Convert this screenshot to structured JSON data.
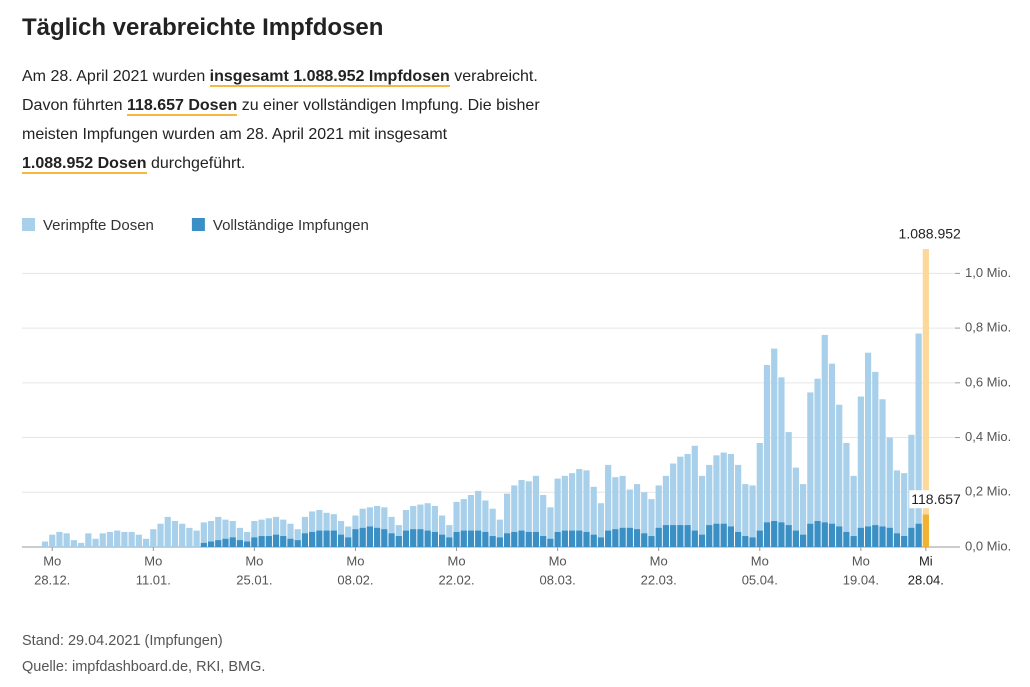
{
  "title": "Täglich verabreichte Impfdosen",
  "intro": [
    [
      {
        "text": "Am 28. April 2021 wurden "
      },
      {
        "text": "insgesamt 1.088.952 Impfdosen",
        "bold": true
      },
      {
        "text": " verabreicht."
      }
    ],
    [
      {
        "text": "Davon führten "
      },
      {
        "text": "118.657 Dosen",
        "bold": true
      },
      {
        "text": " zu einer vollständigen Impfung. Die bisher"
      }
    ],
    [
      {
        "text": "meisten Impfungen wurden am 28. April 2021 mit insgesamt"
      }
    ],
    [
      {
        "text": "1.088.952 Dosen",
        "bold": true
      },
      {
        "text": " durchgeführt."
      }
    ]
  ],
  "footer": [
    "Stand: 29.04.2021 (Impfungen)",
    "Quelle: impfdashboard.de, RKI, BMG."
  ],
  "chart_data": {
    "type": "bar",
    "overlay": true,
    "categories": [
      null,
      [
        "Mo",
        "28.12."
      ],
      null,
      null,
      null,
      null,
      null,
      null,
      null,
      null,
      null,
      null,
      null,
      null,
      null,
      [
        "Mo",
        "11.01."
      ],
      null,
      null,
      null,
      null,
      null,
      null,
      null,
      null,
      null,
      null,
      null,
      null,
      null,
      [
        "Mo",
        "25.01."
      ],
      null,
      null,
      null,
      null,
      null,
      null,
      null,
      null,
      null,
      null,
      null,
      null,
      null,
      [
        "Mo",
        "08.02."
      ],
      null,
      null,
      null,
      null,
      null,
      null,
      null,
      null,
      null,
      null,
      null,
      null,
      null,
      [
        "Mo",
        "22.02."
      ],
      null,
      null,
      null,
      null,
      null,
      null,
      null,
      null,
      null,
      null,
      null,
      null,
      null,
      [
        "Mo",
        "08.03."
      ],
      null,
      null,
      null,
      null,
      null,
      null,
      null,
      null,
      null,
      null,
      null,
      null,
      null,
      [
        "Mo",
        "22.03."
      ],
      null,
      null,
      null,
      null,
      null,
      null,
      null,
      null,
      null,
      null,
      null,
      null,
      null,
      [
        "Mo",
        "05.04."
      ],
      null,
      null,
      null,
      null,
      null,
      null,
      null,
      null,
      null,
      null,
      null,
      null,
      null,
      [
        "Mo",
        "19.04."
      ],
      null,
      null,
      null,
      null,
      null,
      null,
      null,
      null,
      [
        "Mi",
        "28.04."
      ]
    ],
    "series": [
      {
        "name": "Verimpfte Dosen",
        "color": "#a8d0ea",
        "highlight_color": "#fcd89a",
        "values": [
          20000,
          45000,
          55000,
          50000,
          25000,
          15000,
          50000,
          30000,
          50000,
          55000,
          60000,
          55000,
          55000,
          45000,
          30000,
          65000,
          85000,
          110000,
          95000,
          85000,
          70000,
          60000,
          90000,
          95000,
          110000,
          100000,
          95000,
          70000,
          55000,
          95000,
          100000,
          105000,
          110000,
          100000,
          85000,
          65000,
          110000,
          130000,
          135000,
          125000,
          120000,
          95000,
          75000,
          115000,
          140000,
          145000,
          150000,
          145000,
          110000,
          80000,
          135000,
          150000,
          155000,
          160000,
          150000,
          115000,
          80000,
          165000,
          175000,
          190000,
          205000,
          170000,
          140000,
          100000,
          195000,
          225000,
          245000,
          240000,
          260000,
          190000,
          145000,
          250000,
          260000,
          270000,
          285000,
          280000,
          220000,
          160000,
          300000,
          255000,
          260000,
          210000,
          230000,
          200000,
          175000,
          225000,
          260000,
          305000,
          330000,
          340000,
          370000,
          260000,
          300000,
          335000,
          345000,
          340000,
          300000,
          230000,
          225000,
          380000,
          665000,
          725000,
          620000,
          420000,
          290000,
          230000,
          565000,
          615000,
          775000,
          670000,
          520000,
          380000,
          260000,
          550000,
          710000,
          640000,
          540000,
          400000,
          280000,
          270000,
          410000,
          780000,
          1088952
        ],
        "value_labels": [
          null,
          null,
          null,
          null,
          null,
          null,
          null,
          null,
          null,
          null,
          null,
          null,
          null,
          null,
          null,
          null,
          null,
          null,
          null,
          null,
          null,
          null,
          null,
          null,
          null,
          null,
          null,
          null,
          null,
          null,
          null,
          null,
          null,
          null,
          null,
          null,
          null,
          null,
          null,
          null,
          null,
          null,
          null,
          null,
          null,
          null,
          null,
          null,
          null,
          null,
          null,
          null,
          null,
          null,
          null,
          null,
          null,
          null,
          null,
          null,
          null,
          null,
          null,
          null,
          null,
          null,
          null,
          null,
          null,
          null,
          null,
          null,
          null,
          null,
          null,
          null,
          null,
          null,
          null,
          null,
          null,
          null,
          null,
          null,
          null,
          null,
          null,
          null,
          null,
          null,
          null,
          null,
          null,
          null,
          null,
          null,
          null,
          null,
          null,
          null,
          null,
          null,
          null,
          null,
          null,
          null,
          null,
          null,
          null,
          null,
          null,
          null,
          null,
          null,
          null,
          null,
          null,
          null,
          null,
          null,
          null,
          null,
          "1.088.952"
        ]
      },
      {
        "name": "Vollständige Impfungen",
        "color": "#3a8fc4",
        "highlight_color": "#f0b232",
        "values": [
          0,
          0,
          0,
          0,
          0,
          0,
          0,
          0,
          0,
          0,
          0,
          0,
          0,
          0,
          0,
          0,
          0,
          0,
          0,
          0,
          0,
          0,
          15000,
          20000,
          25000,
          30000,
          35000,
          25000,
          20000,
          35000,
          40000,
          40000,
          45000,
          40000,
          30000,
          25000,
          50000,
          55000,
          60000,
          60000,
          60000,
          45000,
          35000,
          65000,
          70000,
          75000,
          70000,
          65000,
          50000,
          40000,
          60000,
          65000,
          65000,
          60000,
          55000,
          45000,
          35000,
          55000,
          60000,
          60000,
          60000,
          55000,
          40000,
          35000,
          50000,
          55000,
          60000,
          55000,
          55000,
          40000,
          30000,
          55000,
          60000,
          60000,
          60000,
          55000,
          45000,
          35000,
          60000,
          65000,
          70000,
          70000,
          65000,
          50000,
          40000,
          70000,
          80000,
          80000,
          80000,
          80000,
          60000,
          45000,
          80000,
          85000,
          85000,
          75000,
          55000,
          40000,
          35000,
          60000,
          90000,
          95000,
          90000,
          80000,
          60000,
          45000,
          85000,
          95000,
          90000,
          85000,
          75000,
          55000,
          40000,
          70000,
          75000,
          80000,
          75000,
          70000,
          50000,
          40000,
          70000,
          85000,
          118657
        ],
        "value_labels": [
          null,
          null,
          null,
          null,
          null,
          null,
          null,
          null,
          null,
          null,
          null,
          null,
          null,
          null,
          null,
          null,
          null,
          null,
          null,
          null,
          null,
          null,
          null,
          null,
          null,
          null,
          null,
          null,
          null,
          null,
          null,
          null,
          null,
          null,
          null,
          null,
          null,
          null,
          null,
          null,
          null,
          null,
          null,
          null,
          null,
          null,
          null,
          null,
          null,
          null,
          null,
          null,
          null,
          null,
          null,
          null,
          null,
          null,
          null,
          null,
          null,
          null,
          null,
          null,
          null,
          null,
          null,
          null,
          null,
          null,
          null,
          null,
          null,
          null,
          null,
          null,
          null,
          null,
          null,
          null,
          null,
          null,
          null,
          null,
          null,
          null,
          null,
          null,
          null,
          null,
          null,
          null,
          null,
          null,
          null,
          null,
          null,
          null,
          null,
          null,
          null,
          null,
          null,
          null,
          null,
          null,
          null,
          null,
          null,
          null,
          null,
          null,
          null,
          null,
          null,
          null,
          null,
          null,
          null,
          null,
          null,
          null,
          "118.657"
        ]
      }
    ],
    "ylim": [
      0,
      1100000
    ],
    "yticks": [
      {
        "value": 0,
        "label": "0,0 Mio."
      },
      {
        "value": 200000,
        "label": "0,2 Mio."
      },
      {
        "value": 400000,
        "label": "0,4 Mio."
      },
      {
        "value": 600000,
        "label": "0,6 Mio."
      },
      {
        "value": 800000,
        "label": "0,8 Mio."
      },
      {
        "value": 1000000,
        "label": "1,0 Mio."
      }
    ],
    "grid": true,
    "legend": "top-left"
  }
}
